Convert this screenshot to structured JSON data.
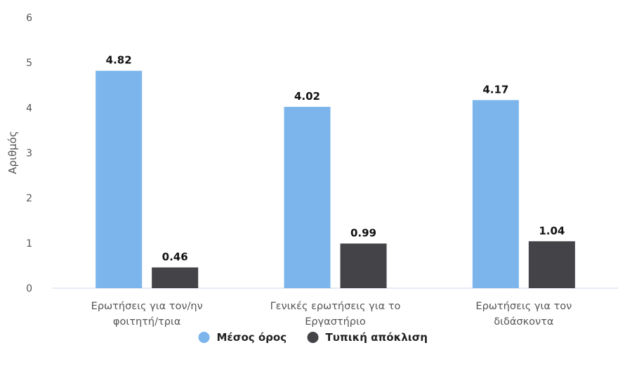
{
  "chart_data": {
    "type": "bar",
    "categories": [
      [
        "Ερωτήσεις για τον/ην",
        "φοιτητή/τρια"
      ],
      [
        "Γενικές ερωτήσεις για το",
        "Εργαστήριο"
      ],
      [
        "Ερωτήσεις για τον",
        "διδάσκοντα"
      ]
    ],
    "series": [
      {
        "name": "Μέσος όρος",
        "color": "#7cb5ec",
        "values": [
          4.82,
          4.02,
          4.17
        ]
      },
      {
        "name": "Τυπική απόκλιση",
        "color": "#434348",
        "values": [
          0.46,
          0.99,
          1.04
        ]
      }
    ],
    "ylabel": "Αριθμός",
    "xlabel": "",
    "ylim": [
      0,
      6
    ],
    "yticks": [
      0,
      1,
      2,
      3,
      4,
      5,
      6
    ],
    "grid": false,
    "legend_position": "bottom-center",
    "data_labels": true
  }
}
